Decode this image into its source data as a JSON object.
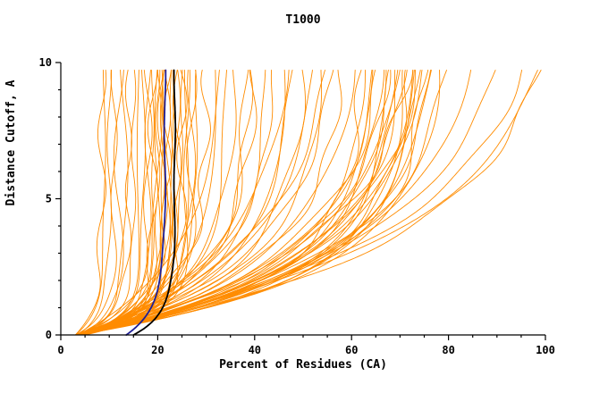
{
  "chart_data": {
    "type": "line",
    "title": "T1000",
    "xlabel": "Percent of Residues (CA)",
    "ylabel": "Distance Cutoff, A",
    "xlim": [
      0,
      100
    ],
    "ylim": [
      0,
      10
    ],
    "x_major_ticks": [
      0,
      20,
      40,
      60,
      80,
      100
    ],
    "y_major_ticks": [
      0,
      5,
      10
    ],
    "x_minor_step": 5,
    "y_minor_step": 1,
    "grid": false,
    "legend": "none",
    "curve_top_y": 9.72,
    "model_color": "#ff8c00",
    "curve_model": "x(y) = start + (end - start) * (1 - exp(-y/tau)) / (1 - exp(-10/tau)); each model curve is [start_percent, end_percent, tau], estimated from the plot",
    "model_curves": [
      [
        3,
        16,
        0.6
      ],
      [
        3.5,
        17,
        0.7
      ],
      [
        4,
        18,
        0.6
      ],
      [
        3,
        18,
        0.9
      ],
      [
        4.5,
        19,
        0.7
      ],
      [
        3,
        19,
        0.5
      ],
      [
        5,
        20,
        0.8
      ],
      [
        3.5,
        20,
        0.6
      ],
      [
        4,
        20,
        1.0
      ],
      [
        3,
        21,
        0.7
      ],
      [
        4,
        21,
        0.9
      ],
      [
        5,
        21,
        0.6
      ],
      [
        3.5,
        22,
        0.8
      ],
      [
        4,
        22,
        1.1
      ],
      [
        3,
        22,
        0.6
      ],
      [
        4.5,
        23,
        0.9
      ],
      [
        3,
        23,
        0.7
      ],
      [
        5,
        24,
        1.0
      ],
      [
        3.5,
        24,
        0.6
      ],
      [
        4,
        25,
        0.8
      ],
      [
        3,
        25,
        1.2
      ],
      [
        4,
        26,
        0.9
      ],
      [
        3.5,
        26,
        0.7
      ],
      [
        4.5,
        27,
        1.0
      ],
      [
        3,
        27,
        0.8
      ],
      [
        4,
        28,
        1.2
      ],
      [
        3.5,
        15,
        0.7
      ],
      [
        4,
        14,
        0.8
      ],
      [
        3,
        13,
        0.6
      ],
      [
        4,
        12,
        0.7
      ],
      [
        3,
        9,
        0.9
      ],
      [
        3.5,
        10,
        0.8
      ],
      [
        3,
        11,
        0.7
      ],
      [
        3,
        8.5,
        1.0
      ],
      [
        3,
        30,
        1.5
      ],
      [
        4,
        32,
        1.8
      ],
      [
        3.5,
        34,
        1.6
      ],
      [
        4,
        36,
        2.0
      ],
      [
        3,
        38,
        1.7
      ],
      [
        4.5,
        40,
        2.2
      ],
      [
        3,
        42,
        1.9
      ],
      [
        4,
        44,
        2.4
      ],
      [
        3.5,
        46,
        2.0
      ],
      [
        4,
        48,
        2.6
      ],
      [
        3,
        50,
        2.2
      ],
      [
        4,
        52,
        2.8
      ],
      [
        3.5,
        54,
        2.4
      ],
      [
        4,
        56,
        3.0
      ],
      [
        3,
        58,
        2.5
      ],
      [
        4,
        60,
        2.7
      ],
      [
        3.5,
        33,
        2.9
      ],
      [
        4,
        47,
        3.2
      ],
      [
        3,
        55,
        3.4
      ],
      [
        4,
        39,
        2.1
      ],
      [
        3,
        62,
        2.0
      ],
      [
        4,
        63,
        2.4
      ],
      [
        3.5,
        64,
        2.1
      ],
      [
        4,
        65,
        2.7
      ],
      [
        3,
        66,
        2.2
      ],
      [
        4,
        66,
        3.0
      ],
      [
        3.5,
        67,
        1.9
      ],
      [
        4,
        68,
        2.5
      ],
      [
        3,
        68,
        2.9
      ],
      [
        4,
        69,
        2.2
      ],
      [
        3.5,
        70,
        2.6
      ],
      [
        4,
        70,
        3.1
      ],
      [
        3,
        71,
        2.0
      ],
      [
        4,
        71,
        2.8
      ],
      [
        3.5,
        72,
        2.3
      ],
      [
        4,
        72,
        3.2
      ],
      [
        3,
        73,
        2.1
      ],
      [
        4,
        73,
        2.7
      ],
      [
        3.5,
        74,
        2.4
      ],
      [
        4,
        74,
        3.0
      ],
      [
        3,
        75,
        2.2
      ],
      [
        4,
        75,
        2.9
      ],
      [
        3.5,
        76,
        2.5
      ],
      [
        4,
        77,
        2.8
      ],
      [
        3,
        78,
        2.3
      ],
      [
        4,
        80,
        3.0
      ],
      [
        3.5,
        85,
        3.3
      ],
      [
        4,
        90,
        3.6
      ],
      [
        3,
        96,
        3.8
      ],
      [
        4,
        99,
        3.5
      ],
      [
        3.5,
        100,
        4.0
      ]
    ],
    "highlight_curves": [
      {
        "name": "highlight-navy",
        "color": "#1f1f96",
        "start": 13.5,
        "end": 21.5,
        "tau": 1.0,
        "width": 1.8
      },
      {
        "name": "highlight-black",
        "color": "#000000",
        "start": 15,
        "end": 23.5,
        "tau": 0.8,
        "width": 1.8
      }
    ]
  }
}
